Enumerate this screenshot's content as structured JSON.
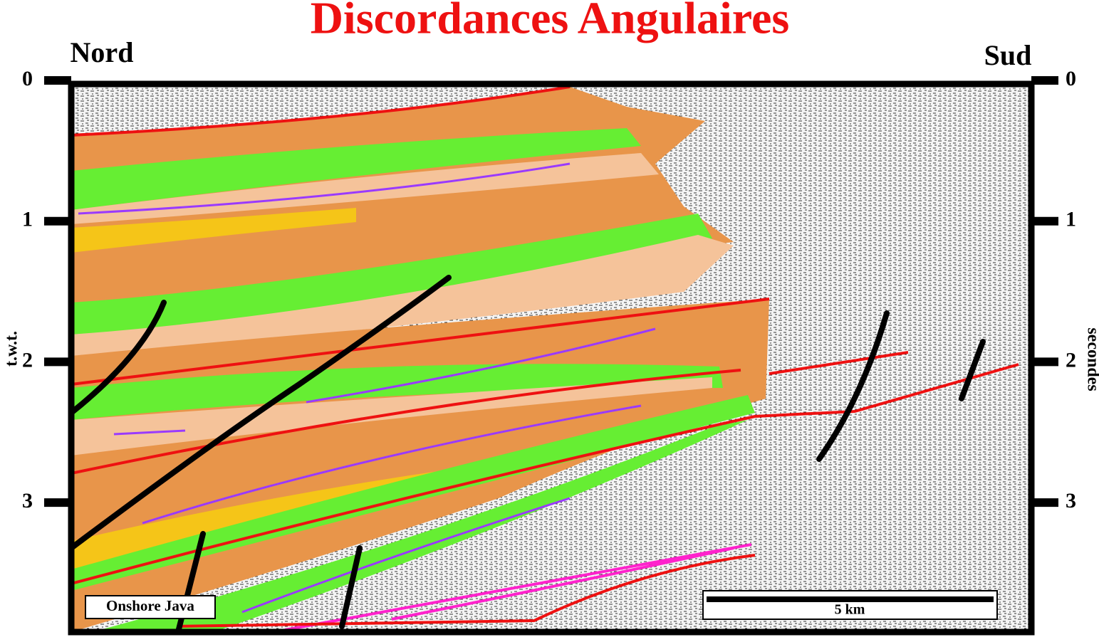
{
  "title": "Discordances Angulaires",
  "left_label": "Nord",
  "right_label": "Sud",
  "left_axis": {
    "label": "t.w.t.",
    "ticks": [
      0,
      1,
      2,
      3
    ]
  },
  "right_axis": {
    "label": "secondes",
    "ticks": [
      0,
      1,
      2,
      3
    ]
  },
  "inset_label": "Onshore Java",
  "scale_bar": {
    "label": "5 km"
  }
}
